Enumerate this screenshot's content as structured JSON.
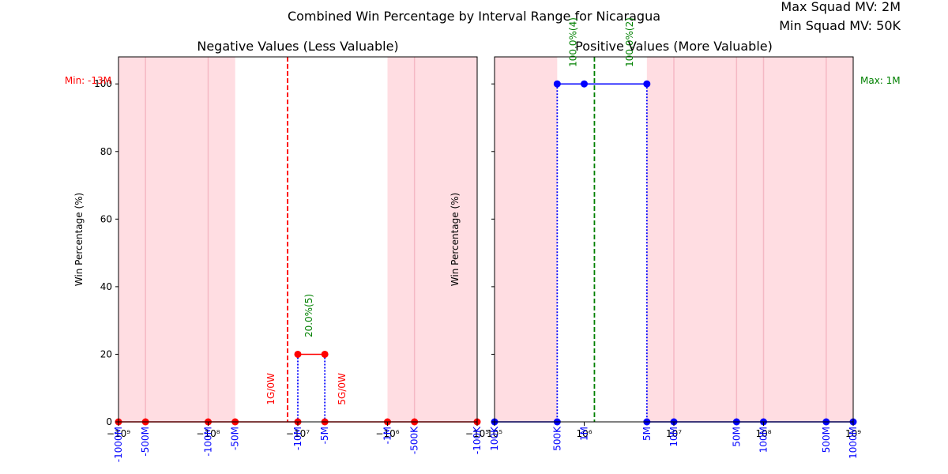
{
  "header": {
    "suptitle": "Combined Win Percentage by Interval Range for Nicaragua",
    "max_squad_mv": "Max Squad MV: 2M",
    "min_squad_mv": "Min Squad MV: 50K"
  },
  "chart_data": [
    {
      "type": "line",
      "title": "Negative Values (Less Valuable)",
      "xlabel": "",
      "ylabel": "Win Percentage (%)",
      "x_scale": "symlog (negative)",
      "xlim": [
        -1000000000,
        -100000
      ],
      "ylim": [
        0,
        108
      ],
      "y_ticks": [
        "0",
        "20",
        "40",
        "60",
        "80",
        "100"
      ],
      "x_ticks": [
        "−10⁹",
        "−10⁸",
        "−10⁷",
        "−10⁶",
        "−10⁵"
      ],
      "interval_labels": [
        "-1000M",
        "-500M",
        "-100M",
        "-50M",
        "-10M",
        "-5M",
        "-1M",
        "-500K",
        "-100K"
      ],
      "annotation": "Min: -13M",
      "reference_line_x": -13000000,
      "shaded_ranges": [
        [
          -1000000000,
          -50000000
        ],
        [
          -1000000,
          -100000
        ]
      ],
      "series": [
        {
          "points": [
            [
              -1000000000,
              0
            ],
            [
              -500000000,
              0
            ],
            [
              -100000000,
              0
            ],
            [
              -50000000,
              0
            ],
            [
              -10000000,
              0
            ],
            [
              -10000000,
              20
            ],
            [
              -5000000,
              20
            ],
            [
              -5000000,
              0
            ],
            [
              -1000000,
              0
            ],
            [
              -500000,
              0
            ],
            [
              -100000,
              0
            ]
          ]
        }
      ],
      "bar_labels": [
        {
          "text": "1G/0W",
          "x": -20000000,
          "y": 5
        },
        {
          "text": "5G/0W",
          "x": -3200000,
          "y": 5
        },
        {
          "text": "20.0%(5)",
          "x": -7500000,
          "y": 25
        }
      ]
    },
    {
      "type": "line",
      "title": "Positive Values (More Valuable)",
      "xlabel": "",
      "ylabel": "Win Percentage (%)",
      "x_scale": "log",
      "xlim": [
        100000,
        1000000000
      ],
      "ylim": [
        0,
        108
      ],
      "x_ticks": [
        "10⁵",
        "10⁶",
        "10⁷",
        "10⁸",
        "10⁹"
      ],
      "interval_labels": [
        "100K",
        "500K",
        "1M",
        "5M",
        "10M",
        "50M",
        "100M",
        "500M",
        "1000M"
      ],
      "annotation": "Max: 1M",
      "reference_line_x": 1300000,
      "shaded_ranges": [
        [
          100000,
          500000
        ],
        [
          5000000,
          1000000000
        ]
      ],
      "series": [
        {
          "points": [
            [
              100000,
              0
            ],
            [
              500000,
              0
            ],
            [
              500000,
              100
            ],
            [
              1000000,
              100
            ],
            [
              5000000,
              100
            ],
            [
              5000000,
              0
            ],
            [
              10000000,
              0
            ],
            [
              50000000,
              0
            ],
            [
              100000000,
              0
            ],
            [
              500000000,
              0
            ],
            [
              1000000000,
              0
            ]
          ]
        }
      ],
      "bar_labels": [
        {
          "text": "100.0%(4)",
          "x": 750000,
          "y": 105
        },
        {
          "text": "100.0%(2)",
          "x": 3200000,
          "y": 105
        }
      ]
    }
  ]
}
